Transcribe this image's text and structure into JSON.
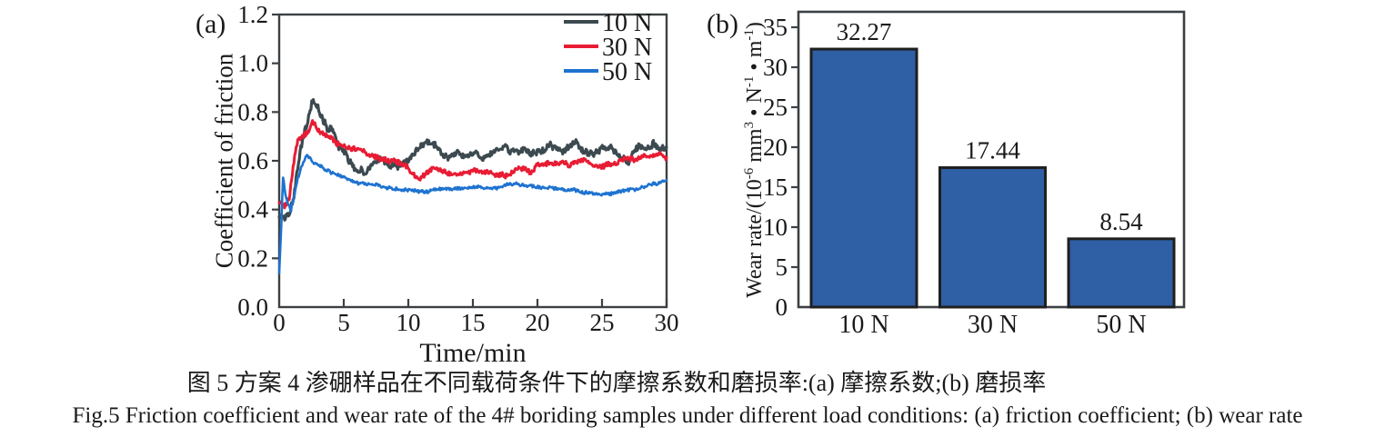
{
  "figure": {
    "panel_a_tag": "(a)",
    "panel_b_tag": "(b)",
    "caption_zh": "图 5 方案 4 渗硼样品在不同载荷条件下的摩擦系数和磨损率:(a) 摩擦系数;(b) 磨损率",
    "caption_en": "Fig.5  Friction coefficient and wear rate of the 4# boriding samples under different load conditions: (a) friction coefficient; (b) wear rate",
    "text_color": "#1a1a1a",
    "axis_color": "#3c4043"
  },
  "chart_data": [
    {
      "type": "line",
      "title": "",
      "xlabel": "Time/min",
      "ylabel": "Coefficient of friction",
      "xlim": [
        0,
        30
      ],
      "ylim": [
        0,
        1.2
      ],
      "xticks": [
        0,
        5,
        10,
        15,
        20,
        25,
        30
      ],
      "ytick_labels": [
        "0.0",
        "0.2",
        "0.4",
        "0.6",
        "0.8",
        "1.0",
        "1.2"
      ],
      "grid": false,
      "legend_position": "top-right-inside",
      "series": [
        {
          "name": "10 N",
          "color": "#3c4a50",
          "noise": 0.012,
          "points": [
            [
              0,
              0.37
            ],
            [
              0.4,
              0.355
            ],
            [
              0.8,
              0.38
            ],
            [
              1.1,
              0.44
            ],
            [
              1.4,
              0.55
            ],
            [
              1.7,
              0.66
            ],
            [
              2.0,
              0.73
            ],
            [
              2.3,
              0.78
            ],
            [
              2.6,
              0.85
            ],
            [
              2.8,
              0.81
            ],
            [
              3.0,
              0.82
            ],
            [
              3.2,
              0.78
            ],
            [
              3.5,
              0.75
            ],
            [
              3.8,
              0.72
            ],
            [
              4.0,
              0.73
            ],
            [
              4.3,
              0.69
            ],
            [
              4.6,
              0.66
            ],
            [
              5.0,
              0.64
            ],
            [
              5.3,
              0.61
            ],
            [
              5.6,
              0.58
            ],
            [
              6.0,
              0.56
            ],
            [
              6.3,
              0.57
            ],
            [
              6.6,
              0.55
            ],
            [
              7.0,
              0.57
            ],
            [
              7.4,
              0.59
            ],
            [
              7.8,
              0.61
            ],
            [
              8.2,
              0.6
            ],
            [
              8.6,
              0.58
            ],
            [
              9.0,
              0.57
            ],
            [
              9.4,
              0.58
            ],
            [
              9.8,
              0.6
            ],
            [
              10.2,
              0.61
            ],
            [
              10.6,
              0.63
            ],
            [
              11.0,
              0.66
            ],
            [
              11.4,
              0.68
            ],
            [
              11.8,
              0.67
            ],
            [
              12.2,
              0.66
            ],
            [
              12.6,
              0.63
            ],
            [
              13.0,
              0.62
            ],
            [
              13.5,
              0.62
            ],
            [
              14.0,
              0.63
            ],
            [
              14.5,
              0.61
            ],
            [
              15.0,
              0.63
            ],
            [
              15.5,
              0.62
            ],
            [
              16.0,
              0.61
            ],
            [
              16.5,
              0.63
            ],
            [
              17.0,
              0.64
            ],
            [
              17.5,
              0.65
            ],
            [
              18.0,
              0.63
            ],
            [
              18.5,
              0.64
            ],
            [
              19.0,
              0.65
            ],
            [
              19.5,
              0.63
            ],
            [
              20.0,
              0.64
            ],
            [
              20.5,
              0.64
            ],
            [
              21.0,
              0.66
            ],
            [
              21.5,
              0.65
            ],
            [
              22.0,
              0.64
            ],
            [
              22.5,
              0.66
            ],
            [
              23.0,
              0.68
            ],
            [
              23.3,
              0.65
            ],
            [
              23.6,
              0.64
            ],
            [
              24.0,
              0.63
            ],
            [
              24.5,
              0.64
            ],
            [
              25.0,
              0.65
            ],
            [
              25.5,
              0.66
            ],
            [
              26.0,
              0.63
            ],
            [
              26.5,
              0.61
            ],
            [
              27.0,
              0.59
            ],
            [
              27.3,
              0.62
            ],
            [
              27.6,
              0.64
            ],
            [
              28.0,
              0.65
            ],
            [
              28.5,
              0.64
            ],
            [
              29.0,
              0.67
            ],
            [
              29.5,
              0.65
            ],
            [
              30,
              0.67
            ]
          ]
        },
        {
          "name": "30 N",
          "color": "#e81c34",
          "noise": 0.009,
          "points": [
            [
              0,
              0.43
            ],
            [
              0.4,
              0.41
            ],
            [
              0.8,
              0.45
            ],
            [
              1.1,
              0.58
            ],
            [
              1.4,
              0.67
            ],
            [
              1.7,
              0.7
            ],
            [
              2.0,
              0.71
            ],
            [
              2.3,
              0.72
            ],
            [
              2.6,
              0.76
            ],
            [
              2.9,
              0.73
            ],
            [
              3.2,
              0.71
            ],
            [
              3.6,
              0.7
            ],
            [
              4.0,
              0.69
            ],
            [
              4.5,
              0.67
            ],
            [
              5.0,
              0.665
            ],
            [
              5.5,
              0.66
            ],
            [
              6.0,
              0.65
            ],
            [
              6.5,
              0.64
            ],
            [
              7.0,
              0.625
            ],
            [
              7.5,
              0.615
            ],
            [
              8.0,
              0.61
            ],
            [
              8.5,
              0.6
            ],
            [
              9.0,
              0.6
            ],
            [
              9.5,
              0.59
            ],
            [
              10.0,
              0.565
            ],
            [
              10.4,
              0.545
            ],
            [
              10.8,
              0.53
            ],
            [
              11.2,
              0.54
            ],
            [
              11.6,
              0.555
            ],
            [
              12.0,
              0.565
            ],
            [
              12.5,
              0.56
            ],
            [
              13.0,
              0.55
            ],
            [
              13.5,
              0.555
            ],
            [
              14.0,
              0.55
            ],
            [
              14.5,
              0.555
            ],
            [
              15.0,
              0.55
            ],
            [
              15.5,
              0.56
            ],
            [
              16.0,
              0.55
            ],
            [
              16.5,
              0.55
            ],
            [
              17.0,
              0.54
            ],
            [
              17.5,
              0.535
            ],
            [
              18.0,
              0.55
            ],
            [
              18.5,
              0.57
            ],
            [
              19.0,
              0.57
            ],
            [
              19.5,
              0.555
            ],
            [
              20.0,
              0.58
            ],
            [
              20.5,
              0.59
            ],
            [
              21.0,
              0.6
            ],
            [
              21.5,
              0.59
            ],
            [
              22.0,
              0.59
            ],
            [
              22.5,
              0.585
            ],
            [
              23.0,
              0.59
            ],
            [
              23.5,
              0.6
            ],
            [
              24.0,
              0.59
            ],
            [
              24.5,
              0.58
            ],
            [
              25.0,
              0.575
            ],
            [
              25.5,
              0.585
            ],
            [
              26.0,
              0.59
            ],
            [
              26.5,
              0.6
            ],
            [
              27.0,
              0.61
            ],
            [
              27.5,
              0.6
            ],
            [
              28.0,
              0.615
            ],
            [
              28.5,
              0.625
            ],
            [
              29.0,
              0.615
            ],
            [
              29.5,
              0.63
            ],
            [
              30,
              0.61
            ]
          ]
        },
        {
          "name": "50 N",
          "color": "#1e73d0",
          "noise": 0.006,
          "points": [
            [
              0,
              0.14
            ],
            [
              0.15,
              0.32
            ],
            [
              0.3,
              0.53
            ],
            [
              0.5,
              0.46
            ],
            [
              0.7,
              0.42
            ],
            [
              0.9,
              0.4
            ],
            [
              1.1,
              0.44
            ],
            [
              1.4,
              0.52
            ],
            [
              1.7,
              0.57
            ],
            [
              2.0,
              0.61
            ],
            [
              2.2,
              0.62
            ],
            [
              2.5,
              0.6
            ],
            [
              2.8,
              0.59
            ],
            [
              3.1,
              0.585
            ],
            [
              3.4,
              0.57
            ],
            [
              3.7,
              0.56
            ],
            [
              4.0,
              0.55
            ],
            [
              4.5,
              0.54
            ],
            [
              5.0,
              0.53
            ],
            [
              5.5,
              0.52
            ],
            [
              6.0,
              0.51
            ],
            [
              6.5,
              0.505
            ],
            [
              7.0,
              0.5
            ],
            [
              7.5,
              0.5
            ],
            [
              8.0,
              0.495
            ],
            [
              8.5,
              0.49
            ],
            [
              9.0,
              0.485
            ],
            [
              9.5,
              0.48
            ],
            [
              10.0,
              0.48
            ],
            [
              10.5,
              0.478
            ],
            [
              11.0,
              0.477
            ],
            [
              11.5,
              0.478
            ],
            [
              12.0,
              0.479
            ],
            [
              12.5,
              0.48
            ],
            [
              13.0,
              0.482
            ],
            [
              13.5,
              0.484
            ],
            [
              14.0,
              0.486
            ],
            [
              14.5,
              0.488
            ],
            [
              15.0,
              0.49
            ],
            [
              15.5,
              0.49
            ],
            [
              16.0,
              0.487
            ],
            [
              16.5,
              0.486
            ],
            [
              17.0,
              0.49
            ],
            [
              17.5,
              0.5
            ],
            [
              18.0,
              0.505
            ],
            [
              18.5,
              0.5
            ],
            [
              19.0,
              0.497
            ],
            [
              19.5,
              0.494
            ],
            [
              20.0,
              0.49
            ],
            [
              20.5,
              0.489
            ],
            [
              21.0,
              0.487
            ],
            [
              21.5,
              0.484
            ],
            [
              22.0,
              0.482
            ],
            [
              22.5,
              0.479
            ],
            [
              23.0,
              0.476
            ],
            [
              23.5,
              0.472
            ],
            [
              24.0,
              0.469
            ],
            [
              24.5,
              0.466
            ],
            [
              25.0,
              0.464
            ],
            [
              25.5,
              0.467
            ],
            [
              26.0,
              0.47
            ],
            [
              26.5,
              0.474
            ],
            [
              27.0,
              0.478
            ],
            [
              27.5,
              0.483
            ],
            [
              28.0,
              0.49
            ],
            [
              28.5,
              0.498
            ],
            [
              29.0,
              0.504
            ],
            [
              29.5,
              0.51
            ],
            [
              30,
              0.52
            ]
          ]
        }
      ]
    },
    {
      "type": "bar",
      "title": "",
      "categories": [
        "10 N",
        "30 N",
        "50 N"
      ],
      "values": [
        32.27,
        17.44,
        8.54
      ],
      "value_labels": [
        "32.27",
        "17.44",
        "8.54"
      ],
      "ylabel_parts": [
        {
          "text": "Wear rate/(10",
          "sup": false
        },
        {
          "text": "-6",
          "sup": true
        },
        {
          "text": " mm",
          "sup": false
        },
        {
          "text": "3",
          "sup": true
        },
        {
          "text": " • N",
          "sup": false
        },
        {
          "text": "-1",
          "sup": true
        },
        {
          "text": " • m",
          "sup": false
        },
        {
          "text": "-1",
          "sup": true
        },
        {
          "text": ")",
          "sup": false
        }
      ],
      "ylim": [
        0,
        35
      ],
      "yticks": [
        0,
        5,
        10,
        15,
        20,
        25,
        30,
        35
      ],
      "grid": false,
      "bar_fill": "#2f5fa4",
      "bar_border": "#1f1f1f"
    }
  ]
}
